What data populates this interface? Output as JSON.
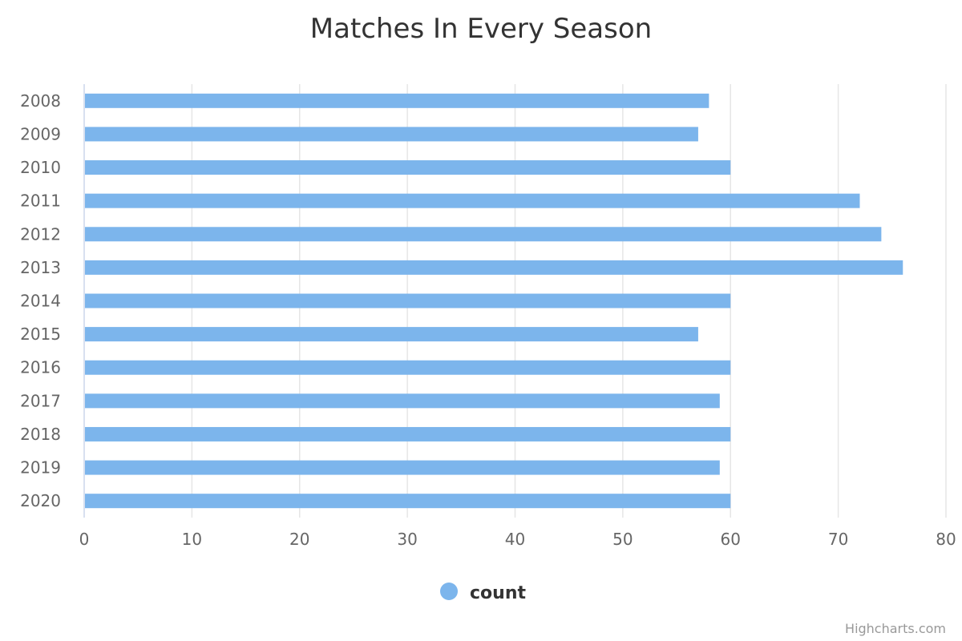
{
  "chart_data": {
    "type": "bar",
    "orientation": "horizontal",
    "title": "Matches In Every Season",
    "categories": [
      "2008",
      "2009",
      "2010",
      "2011",
      "2012",
      "2013",
      "2014",
      "2015",
      "2016",
      "2017",
      "2018",
      "2019",
      "2020"
    ],
    "series": [
      {
        "name": "count",
        "values": [
          58,
          57,
          60,
          72,
          74,
          76,
          60,
          57,
          60,
          59,
          60,
          59,
          60
        ],
        "color": "#7cb5ec"
      }
    ],
    "xlim": [
      0,
      80
    ],
    "ticks": [
      "0",
      "10",
      "20",
      "30",
      "40",
      "50",
      "60",
      "70",
      "80"
    ],
    "grid": true,
    "legend_position": "bottom-center"
  },
  "credits": "Highcharts.com",
  "colors": {
    "bar": "#7cb5ec",
    "grid": "#e6e6e6",
    "axis_line": "#ccd6eb"
  }
}
